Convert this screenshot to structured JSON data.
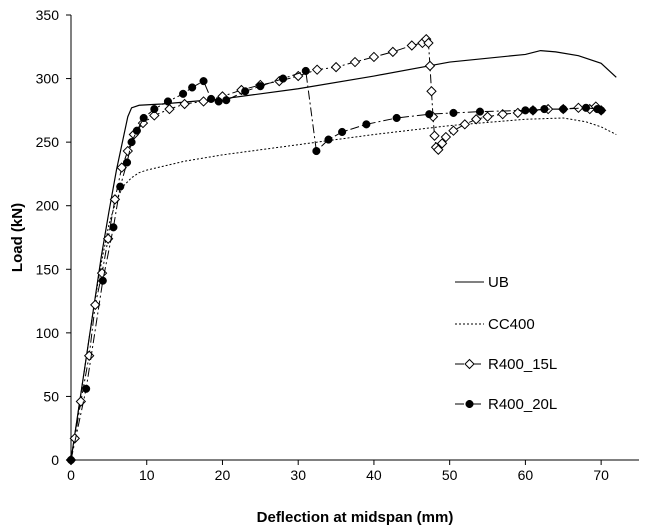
{
  "chart_data": {
    "type": "line",
    "title": "",
    "xlabel": "Deflection at midspan (mm)",
    "ylabel": "Load (kN)",
    "xlim": [
      0,
      75
    ],
    "ylim": [
      0,
      350
    ],
    "xticks": [
      "0",
      "10",
      "20",
      "30",
      "40",
      "50",
      "60",
      "70"
    ],
    "yticks": [
      "0",
      "50",
      "100",
      "150",
      "200",
      "250",
      "300",
      "350"
    ],
    "grid": false,
    "legend_position": "right",
    "series": [
      {
        "name": "UB",
        "style": "solid",
        "marker": "none",
        "points": [
          [
            0,
            0
          ],
          [
            1,
            40
          ],
          [
            2,
            80
          ],
          [
            3,
            120
          ],
          [
            4,
            160
          ],
          [
            5,
            195
          ],
          [
            6,
            228
          ],
          [
            7,
            256
          ],
          [
            7.5,
            270
          ],
          [
            8,
            277
          ],
          [
            9,
            279
          ],
          [
            12,
            280
          ],
          [
            20,
            284
          ],
          [
            30,
            292
          ],
          [
            40,
            302
          ],
          [
            50,
            313
          ],
          [
            60,
            319
          ],
          [
            62,
            322
          ],
          [
            64,
            321
          ],
          [
            67,
            318
          ],
          [
            70,
            312
          ],
          [
            72,
            301
          ]
        ]
      },
      {
        "name": "CC400",
        "style": "dotted",
        "marker": "none",
        "points": [
          [
            0,
            0
          ],
          [
            1,
            40
          ],
          [
            2,
            80
          ],
          [
            3,
            120
          ],
          [
            4,
            155
          ],
          [
            5,
            185
          ],
          [
            6,
            205
          ],
          [
            7,
            216
          ],
          [
            8,
            222
          ],
          [
            9,
            226
          ],
          [
            10,
            228
          ],
          [
            15,
            235
          ],
          [
            20,
            240
          ],
          [
            30,
            248
          ],
          [
            40,
            256
          ],
          [
            50,
            263
          ],
          [
            60,
            268
          ],
          [
            65,
            269
          ],
          [
            68,
            266
          ],
          [
            70,
            262
          ],
          [
            72,
            256
          ]
        ]
      },
      {
        "name": "R400_15L",
        "style": "dash-dot",
        "marker": "open-diamond",
        "points": [
          [
            0,
            0
          ],
          [
            0.5,
            17
          ],
          [
            1.3,
            46
          ],
          [
            2.4,
            82
          ],
          [
            3.2,
            122
          ],
          [
            4.1,
            147
          ],
          [
            4.9,
            174
          ],
          [
            5.8,
            205
          ],
          [
            6.7,
            230
          ],
          [
            7.5,
            243
          ],
          [
            8.3,
            256
          ],
          [
            9.5,
            265
          ],
          [
            11,
            271
          ],
          [
            13,
            276
          ],
          [
            15,
            280
          ],
          [
            17.5,
            282
          ],
          [
            20,
            286
          ],
          [
            22.5,
            291
          ],
          [
            25,
            295
          ],
          [
            27.5,
            298
          ],
          [
            30,
            302
          ],
          [
            32.5,
            307
          ],
          [
            35,
            309
          ],
          [
            37.5,
            313
          ],
          [
            40,
            317
          ],
          [
            42.5,
            321
          ],
          [
            45,
            326
          ],
          [
            46.4,
            328
          ],
          [
            46.9,
            331
          ],
          [
            47.2,
            328
          ],
          [
            47.4,
            310
          ],
          [
            47.6,
            290
          ],
          [
            47.8,
            270
          ],
          [
            48,
            255
          ],
          [
            48.2,
            246
          ],
          [
            48.5,
            244
          ],
          [
            49,
            249
          ],
          [
            49.5,
            254
          ],
          [
            50.5,
            259
          ],
          [
            52,
            264
          ],
          [
            53.5,
            268
          ],
          [
            55,
            270
          ],
          [
            57,
            272
          ],
          [
            59,
            273
          ],
          [
            61,
            275
          ],
          [
            63,
            276
          ],
          [
            65,
            276
          ],
          [
            67,
            277
          ],
          [
            68.5,
            276
          ],
          [
            69.3,
            278
          ],
          [
            70,
            275
          ]
        ]
      },
      {
        "name": "R400_20L",
        "style": "dash-dot",
        "marker": "filled-circle",
        "points": [
          [
            0,
            0
          ],
          [
            2,
            56
          ],
          [
            4.2,
            141
          ],
          [
            5.6,
            183
          ],
          [
            6.5,
            215
          ],
          [
            7.4,
            234
          ],
          [
            8,
            250
          ],
          [
            8.7,
            259
          ],
          [
            9.6,
            269
          ],
          [
            11,
            276
          ],
          [
            12.8,
            282
          ],
          [
            14.8,
            288
          ],
          [
            16,
            293
          ],
          [
            17.5,
            298
          ],
          [
            18.5,
            284
          ],
          [
            19.5,
            282
          ],
          [
            20.5,
            283
          ],
          [
            23,
            290
          ],
          [
            25,
            294
          ],
          [
            28,
            300
          ],
          [
            31,
            306
          ],
          [
            32.4,
            243
          ],
          [
            34,
            252
          ],
          [
            35.8,
            258
          ],
          [
            39,
            264
          ],
          [
            43,
            269
          ],
          [
            47.3,
            272
          ],
          [
            50.5,
            273
          ],
          [
            54,
            274
          ],
          [
            60,
            275
          ],
          [
            61,
            275
          ],
          [
            62.5,
            276
          ],
          [
            65,
            276
          ],
          [
            68,
            277
          ],
          [
            69.5,
            276
          ],
          [
            70,
            275
          ]
        ]
      }
    ]
  }
}
